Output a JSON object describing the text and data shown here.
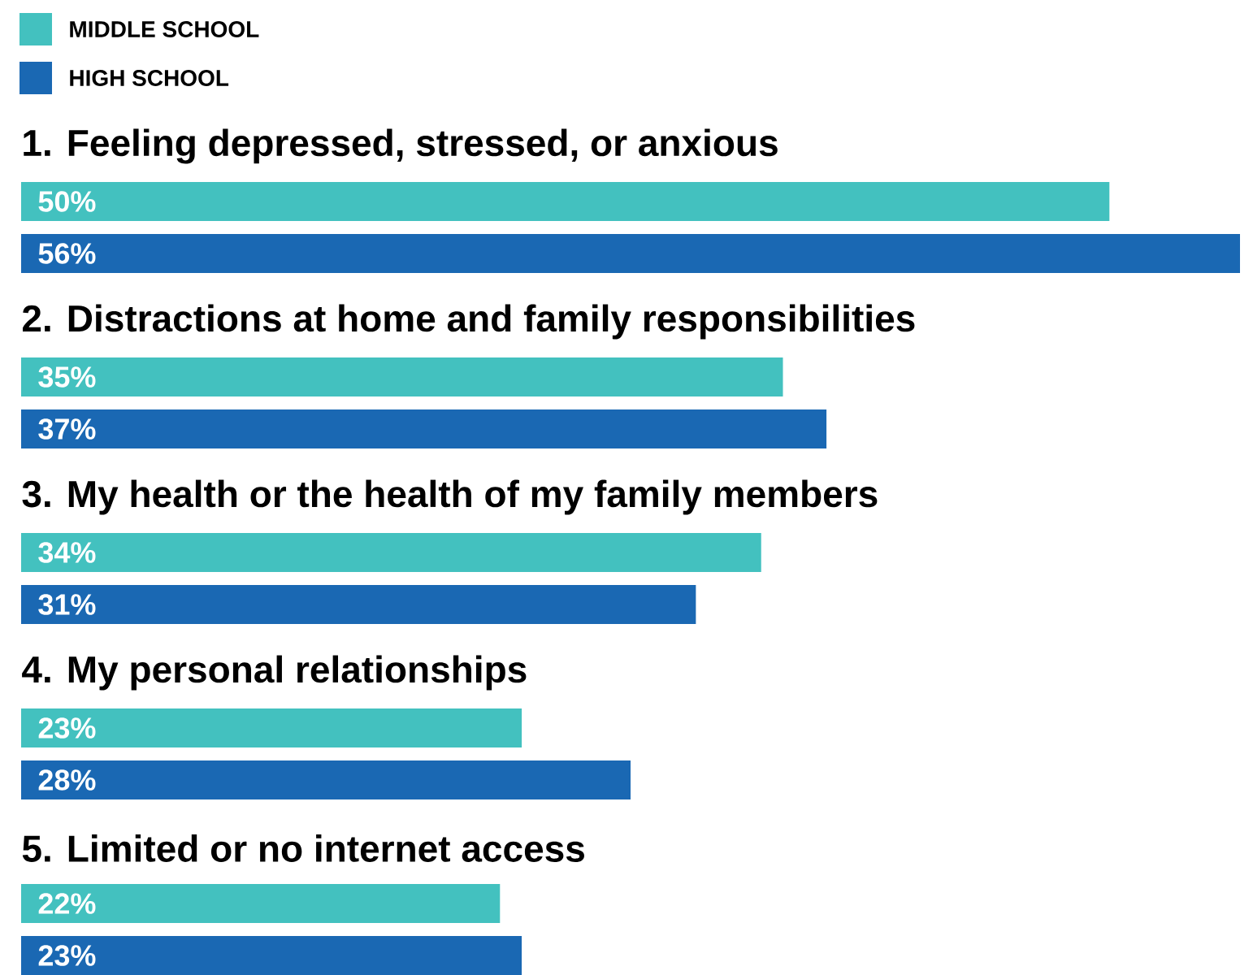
{
  "chart_data": {
    "type": "bar",
    "orientation": "horizontal",
    "categories": [
      "1. Feeling depressed, stressed, or anxious",
      "2. Distractions at home and family responsibilities",
      "3. My health or the health of my family members",
      "4. My personal relationships",
      "5. Limited or no internet access"
    ],
    "series": [
      {
        "name": "MIDDLE SCHOOL",
        "color": "#43c1bf",
        "values": [
          50,
          35,
          34,
          23,
          22
        ],
        "value_labels": [
          "50%",
          "35%",
          "34%",
          "23%",
          "22%"
        ]
      },
      {
        "name": "HIGH SCHOOL",
        "color": "#1a68b3",
        "values": [
          56,
          37,
          31,
          28,
          23
        ],
        "value_labels": [
          "56%",
          "37%",
          "31%",
          "28%",
          "23%"
        ]
      }
    ],
    "legend": "top left"
  }
}
